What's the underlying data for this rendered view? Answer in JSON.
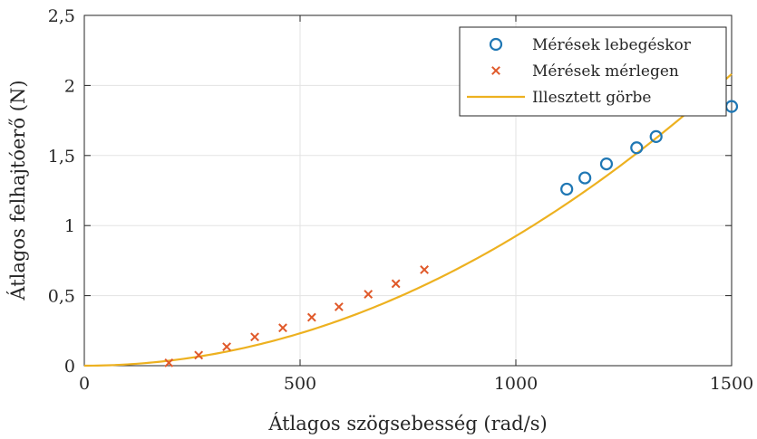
{
  "chart_data": {
    "type": "scatter",
    "xlabel": "Átlagos szögsebesség (rad/s)",
    "ylabel": "Átlagos felhajtóerő (N)",
    "xlim": [
      0,
      1500
    ],
    "ylim": [
      0,
      2.5
    ],
    "x_ticks": [
      0,
      500,
      1000,
      1500
    ],
    "x_tick_labels": [
      "0",
      "500",
      "1000",
      "1500"
    ],
    "y_ticks": [
      0,
      0.5,
      1,
      1.5,
      2,
      2.5
    ],
    "y_tick_labels": [
      "0",
      "0,5",
      "1",
      "1,5",
      "2",
      "2,5"
    ],
    "grid": true,
    "legend_position": "top-right",
    "series": [
      {
        "name": "Mérések lebegéskor",
        "marker": "circle",
        "color": "#1f77b4",
        "points": [
          [
            1118,
            1.26
          ],
          [
            1160,
            1.34
          ],
          [
            1210,
            1.44
          ],
          [
            1280,
            1.555
          ],
          [
            1325,
            1.635
          ],
          [
            1500,
            1.85
          ]
        ]
      },
      {
        "name": "Mérések mérlegen",
        "marker": "x",
        "color": "#e0592a",
        "points": [
          [
            196,
            0.02
          ],
          [
            265,
            0.075
          ],
          [
            330,
            0.135
          ],
          [
            395,
            0.205
          ],
          [
            460,
            0.27
          ],
          [
            527,
            0.345
          ],
          [
            590,
            0.42
          ],
          [
            658,
            0.51
          ],
          [
            722,
            0.585
          ],
          [
            788,
            0.685
          ]
        ]
      },
      {
        "name": "Illesztett görbe",
        "marker": "line",
        "color": "#edb120",
        "equation": "y = 9.25e-7 * x^2"
      }
    ]
  }
}
